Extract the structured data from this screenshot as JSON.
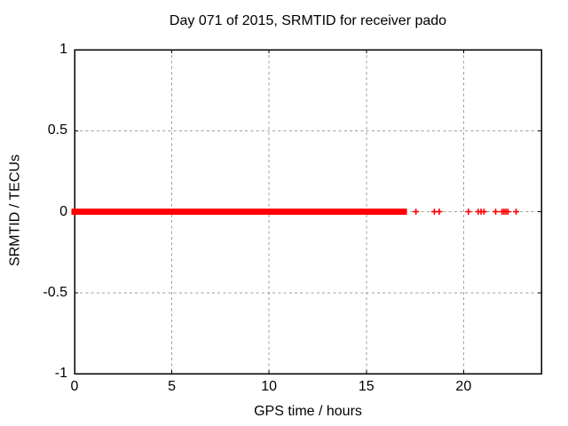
{
  "chart_data": {
    "type": "scatter",
    "title": "Day 071 of 2015, SRMTID for receiver pado",
    "xlabel": "GPS time / hours",
    "ylabel": "SRMTID / TECUs",
    "xlim": [
      0,
      24
    ],
    "ylim": [
      -1,
      1
    ],
    "grid": true,
    "legend": "none",
    "xticks": {
      "values": [
        0,
        5,
        10,
        15,
        20
      ],
      "labels": [
        "0",
        "5",
        "10",
        "15",
        "20"
      ]
    },
    "yticks": {
      "values": [
        1,
        0.5,
        0,
        -0.5,
        -1
      ],
      "labels": [
        "1",
        "0.5",
        "0",
        "-0.5",
        "-1"
      ]
    },
    "colors": {
      "marker": "#ff0000",
      "axis": "#000000",
      "grid": "#9e9e9e",
      "background": "#ffffff"
    },
    "series": [
      {
        "name": "SRMTID",
        "marker": "plus",
        "color": "#ff0000",
        "dense_run": {
          "x_start": 0,
          "x_end": 16.93,
          "y": 0
        },
        "isolated_points": [
          {
            "x": 17.55,
            "y": 0
          },
          {
            "x": 18.5,
            "y": 0
          },
          {
            "x": 18.75,
            "y": 0
          },
          {
            "x": 20.25,
            "y": 0
          },
          {
            "x": 20.75,
            "y": 0
          },
          {
            "x": 20.9,
            "y": 0
          },
          {
            "x": 21.05,
            "y": 0
          },
          {
            "x": 21.65,
            "y": 0
          },
          {
            "x": 21.98,
            "y": 0
          },
          {
            "x": 22.08,
            "y": 0
          },
          {
            "x": 22.18,
            "y": 0
          },
          {
            "x": 22.28,
            "y": 0
          },
          {
            "x": 22.7,
            "y": 0
          }
        ]
      }
    ]
  }
}
